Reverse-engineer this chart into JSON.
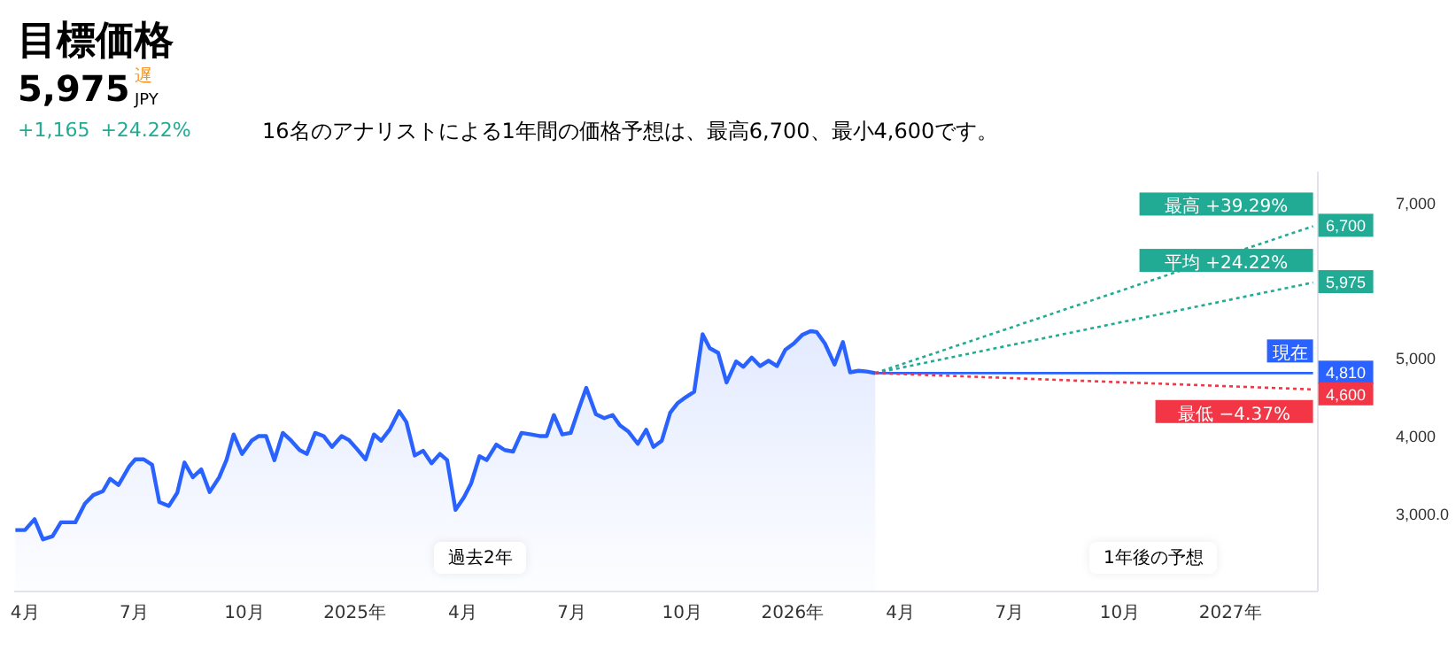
{
  "chart_data": {
    "type": "line",
    "title": "目標価格",
    "subtitle": "16名のアナリストによる1年間の価格予想は、最高6,700、最小4,600です。",
    "annotations": [
      "5,975",
      "遅",
      "JPY",
      "+1,165",
      "+24.22%",
      "過去2年",
      "1年後の予想"
    ],
    "xlim": [
      "2024-03-23",
      "2027-03-15"
    ],
    "xticks": [
      {
        "value": "2024-04-01",
        "label": "4月"
      },
      {
        "value": "2024-07-01",
        "label": "7月"
      },
      {
        "value": "2024-10-01",
        "label": "10月"
      },
      {
        "value": "2025-01-01",
        "label": "2025年"
      },
      {
        "value": "2025-04-01",
        "label": "4月"
      },
      {
        "value": "2025-07-01",
        "label": "7月"
      },
      {
        "value": "2025-10-01",
        "label": "10月"
      },
      {
        "value": "2026-01-01",
        "label": "2026年"
      },
      {
        "value": "2026-04-01",
        "label": "4月"
      },
      {
        "value": "2026-07-01",
        "label": "7月"
      },
      {
        "value": "2026-10-01",
        "label": "10月"
      },
      {
        "value": "2027-01-01",
        "label": "2027年"
      }
    ],
    "ylim": [
      2000,
      7400
    ],
    "yticks": [
      {
        "value": 3000,
        "label": "3,000.0"
      },
      {
        "value": 4000,
        "label": "4,000"
      },
      {
        "value": 5000,
        "label": "5,000"
      },
      {
        "value": 7000,
        "label": "7,000"
      }
    ],
    "grid": false,
    "legend": "right",
    "series": [
      {
        "type": "area",
        "color": "#2962ff",
        "line_style": "solid",
        "x": [
          "2024-03-24",
          "2024-04-01",
          "2024-04-09",
          "2024-04-16",
          "2024-04-24",
          "2024-05-01",
          "2024-05-13",
          "2024-05-21",
          "2024-05-28",
          "2024-06-05",
          "2024-06-11",
          "2024-06-18",
          "2024-06-27",
          "2024-07-02",
          "2024-07-09",
          "2024-07-16",
          "2024-07-22",
          "2024-07-30",
          "2024-08-06",
          "2024-08-12",
          "2024-08-19",
          "2024-08-26",
          "2024-09-02",
          "2024-09-10",
          "2024-09-16",
          "2024-09-22",
          "2024-09-29",
          "2024-10-07",
          "2024-10-13",
          "2024-10-19",
          "2024-10-26",
          "2024-11-02",
          "2024-11-09",
          "2024-11-16",
          "2024-11-22",
          "2024-11-29",
          "2024-12-06",
          "2024-12-13",
          "2024-12-21",
          "2024-12-27",
          "2025-01-03",
          "2025-01-10",
          "2025-01-17",
          "2025-01-23",
          "2025-01-30",
          "2025-02-07",
          "2025-02-13",
          "2025-02-20",
          "2025-02-27",
          "2025-03-06",
          "2025-03-13",
          "2025-03-19",
          "2025-03-26",
          "2025-04-02",
          "2025-04-08",
          "2025-04-15",
          "2025-04-21",
          "2025-04-29",
          "2025-05-06",
          "2025-05-13",
          "2025-05-20",
          "2025-05-28",
          "2025-06-04",
          "2025-06-10",
          "2025-06-16",
          "2025-06-23",
          "2025-06-30",
          "2025-07-07",
          "2025-07-13",
          "2025-07-21",
          "2025-07-28",
          "2025-08-04",
          "2025-08-10",
          "2025-08-17",
          "2025-08-25",
          "2025-09-01",
          "2025-09-07",
          "2025-09-14",
          "2025-09-21",
          "2025-09-27",
          "2025-10-04",
          "2025-10-11",
          "2025-10-18",
          "2025-10-24",
          "2025-10-31",
          "2025-11-07",
          "2025-11-15",
          "2025-11-21",
          "2025-11-28",
          "2025-12-05",
          "2025-12-12",
          "2025-12-19",
          "2025-12-26",
          "2026-01-02",
          "2026-01-09",
          "2026-01-16",
          "2026-01-21",
          "2026-01-28",
          "2026-02-05",
          "2026-02-12",
          "2026-02-18",
          "2026-02-25",
          "2026-03-04",
          "2026-03-11"
        ],
        "values": [
          2790,
          2790,
          2930,
          2670,
          2710,
          2890,
          2890,
          3130,
          3240,
          3290,
          3450,
          3370,
          3610,
          3700,
          3700,
          3630,
          3150,
          3100,
          3270,
          3660,
          3470,
          3570,
          3280,
          3470,
          3690,
          4020,
          3770,
          3940,
          4000,
          4000,
          3690,
          4040,
          3940,
          3820,
          3770,
          4040,
          4000,
          3860,
          4000,
          3950,
          3830,
          3700,
          4020,
          3940,
          4080,
          4320,
          4180,
          3750,
          3810,
          3650,
          3770,
          3690,
          3050,
          3210,
          3390,
          3740,
          3690,
          3890,
          3820,
          3800,
          4040,
          4020,
          4000,
          4000,
          4270,
          4020,
          4040,
          4360,
          4620,
          4280,
          4230,
          4270,
          4140,
          4060,
          3900,
          4080,
          3860,
          3940,
          4300,
          4420,
          4500,
          4570,
          5310,
          5130,
          5070,
          4690,
          4960,
          4890,
          5010,
          4900,
          4970,
          4900,
          5110,
          5190,
          5300,
          5350,
          5340,
          5190,
          4920,
          5210,
          4820,
          4840,
          4830,
          4810
        ]
      },
      {
        "name": "最高 +39.29%",
        "color": "#22ab94",
        "line_style": "dotted",
        "x": [
          "2026-03-11",
          "2027-03-11"
        ],
        "values": [
          4810,
          6700
        ],
        "value_labels": [
          null,
          "6,700"
        ]
      },
      {
        "name": "平均 +24.22%",
        "color": "#22ab94",
        "line_style": "dotted",
        "x": [
          "2026-03-11",
          "2027-03-11"
        ],
        "values": [
          4810,
          5975
        ],
        "value_labels": [
          null,
          "5,975"
        ]
      },
      {
        "name": "現在",
        "color": "#2962ff",
        "line_style": "solid",
        "x": [
          "2026-03-11",
          "2027-03-11"
        ],
        "values": [
          4810,
          4810
        ],
        "value_labels": [
          null,
          "4,810"
        ]
      },
      {
        "name": "最低 −4.37%",
        "color": "#f23645",
        "line_style": "dotted",
        "x": [
          "2026-03-11",
          "2027-03-11"
        ],
        "values": [
          4810,
          4600
        ],
        "value_labels": [
          null,
          "4,600"
        ]
      }
    ]
  }
}
